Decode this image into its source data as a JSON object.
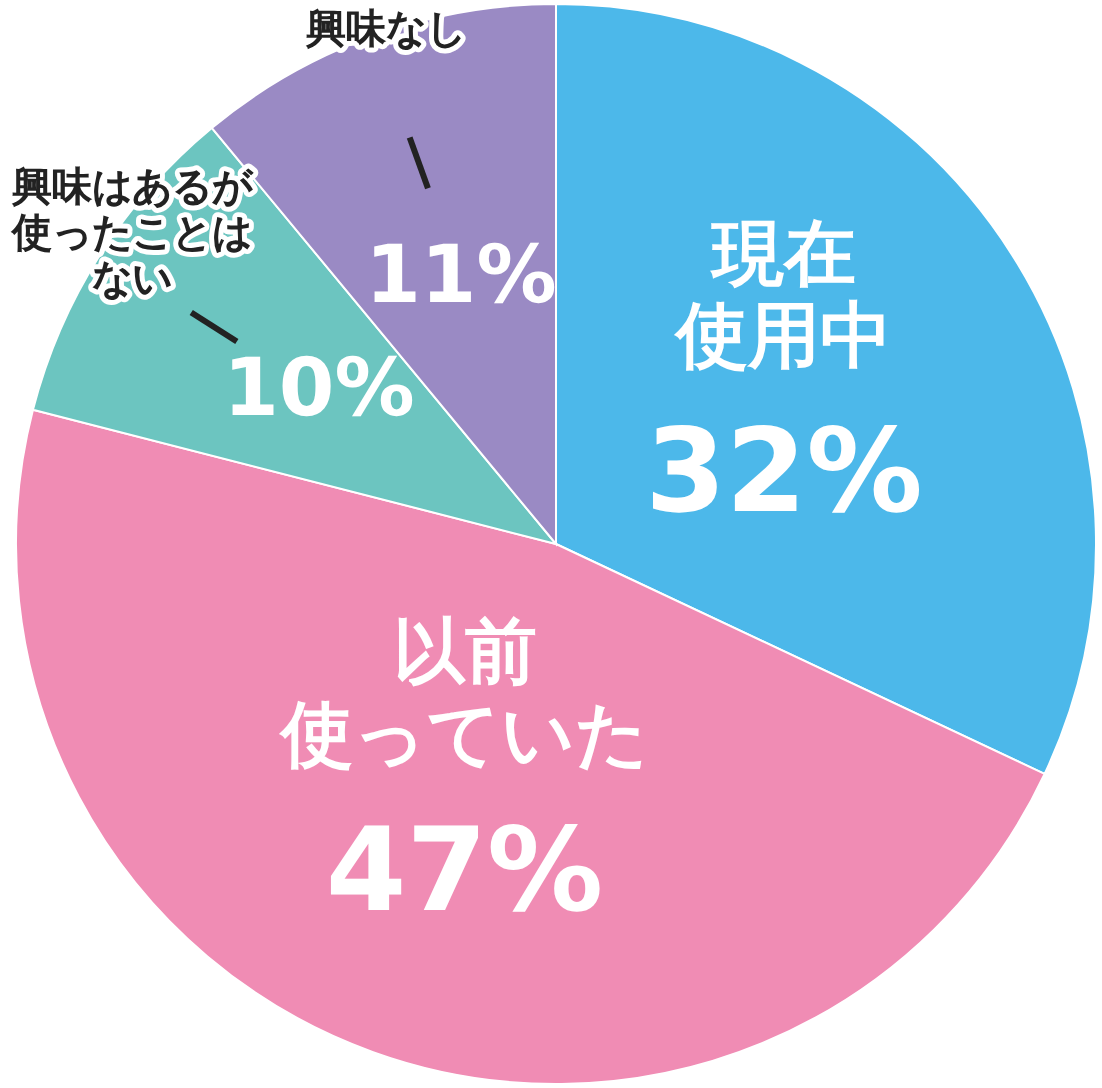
{
  "chart_data": {
    "type": "pie",
    "categories": [
      "現在使用中",
      "以前使っていた",
      "興味はあるが使ったことはない",
      "興味なし"
    ],
    "values": [
      32,
      47,
      10,
      11
    ],
    "value_labels": [
      "32%",
      "47%",
      "10%",
      "11%"
    ],
    "colors": [
      "#4cb8ea",
      "#f08cb4",
      "#6cc5c0",
      "#9a8ac4"
    ]
  }
}
